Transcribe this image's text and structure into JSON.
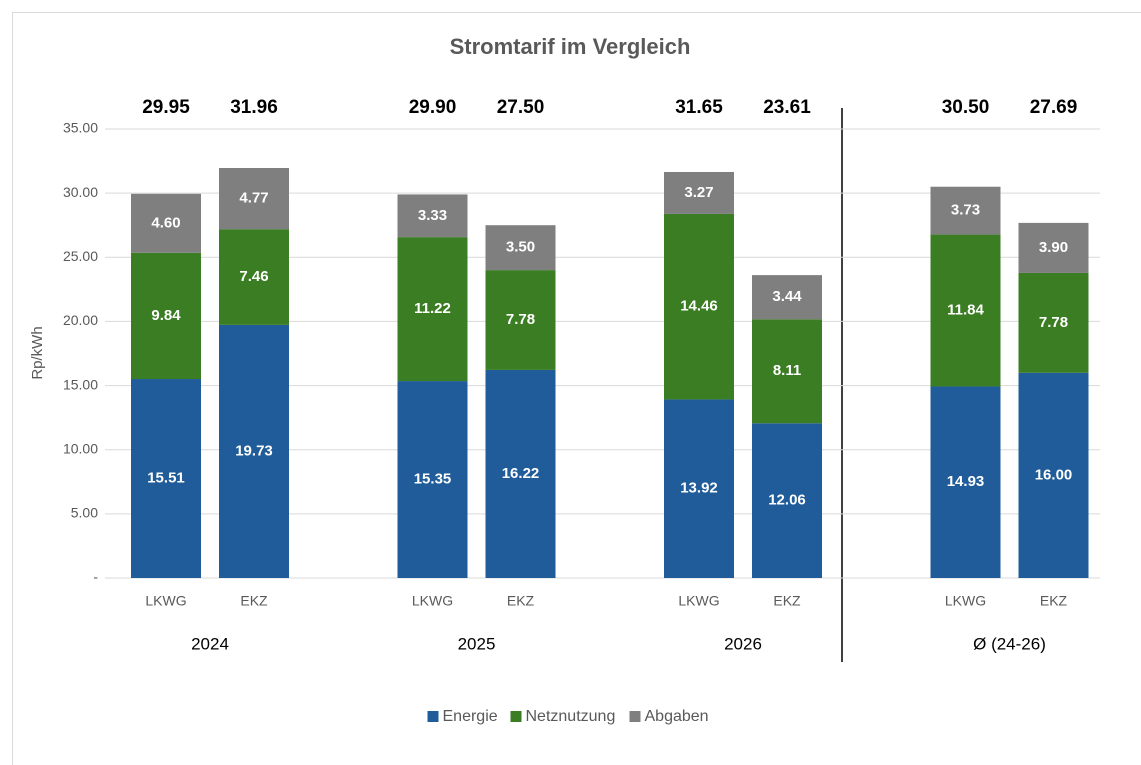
{
  "chart_data": {
    "type": "stacked_bar",
    "title": "Stromtarif im Vergleich",
    "y_label": "Rp/kWh",
    "categories": [
      "LKWG",
      "EKZ",
      "LKWG",
      "EKZ",
      "LKWG",
      "EKZ",
      "LKWG",
      "EKZ"
    ],
    "groups": [
      "2024",
      "2025",
      "2026",
      "Ø (24-26)"
    ],
    "series": [
      {
        "name": "Energie",
        "color": "#1f5c99",
        "values": [
          15.51,
          19.73,
          15.35,
          16.22,
          13.92,
          12.06,
          14.93,
          16.0
        ],
        "value_labels": [
          "15.51",
          "19.73",
          "15.35",
          "16.22",
          "13.92",
          "12.06",
          "14.93",
          "16.00"
        ]
      },
      {
        "name": "Netznutzung",
        "color": "#3a7d22",
        "values": [
          9.84,
          7.46,
          11.22,
          7.78,
          14.46,
          8.11,
          11.84,
          7.78
        ],
        "value_labels": [
          "9.84",
          "7.46",
          "11.22",
          "7.78",
          "14.46",
          "8.11",
          "11.84",
          "7.78"
        ]
      },
      {
        "name": "Abgaben",
        "color": "#7f7f7f",
        "values": [
          4.6,
          4.77,
          3.33,
          3.5,
          3.27,
          3.44,
          3.73,
          3.9
        ],
        "value_labels": [
          "4.60",
          "4.77",
          "3.33",
          "3.50",
          "3.27",
          "3.44",
          "3.73",
          "3.90"
        ]
      }
    ],
    "totals": [
      29.95,
      31.96,
      29.9,
      27.5,
      31.65,
      23.61,
      30.5,
      27.69
    ],
    "total_labels": [
      "29.95",
      "31.96",
      "29.90",
      "27.50",
      "31.65",
      "23.61",
      "30.50",
      "27.69"
    ],
    "ylim": [
      0,
      35
    ],
    "yticks": [
      {
        "value": 0,
        "label": "-"
      },
      {
        "value": 5,
        "label": "5.00"
      },
      {
        "value": 10,
        "label": "10.00"
      },
      {
        "value": 15,
        "label": "15.00"
      },
      {
        "value": 20,
        "label": "20.00"
      },
      {
        "value": 25,
        "label": "25.00"
      },
      {
        "value": 30,
        "label": "30.00"
      },
      {
        "value": 35,
        "label": "35.00"
      }
    ],
    "grid": true,
    "legend": "bottom"
  }
}
